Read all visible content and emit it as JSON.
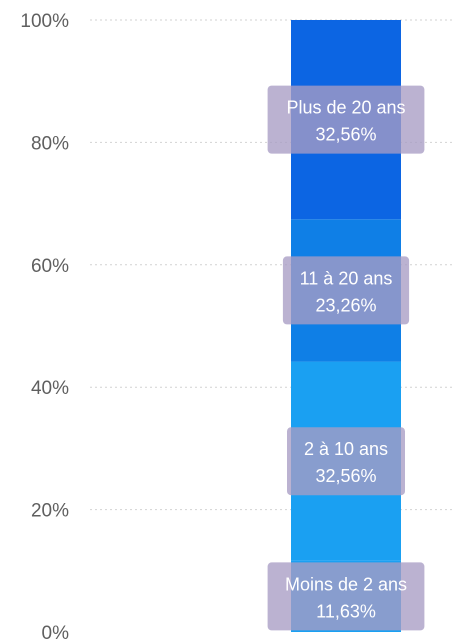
{
  "chart_data": {
    "type": "bar",
    "stacked": true,
    "percent_stacked": true,
    "categories": [
      ""
    ],
    "series": [
      {
        "name": "Moins de 2 ans",
        "values": [
          11.63
        ],
        "label": "11,63%",
        "color": "#1aa0f2"
      },
      {
        "name": "2 à 10 ans",
        "values": [
          32.56
        ],
        "label": "32,56%",
        "color": "#1aa0f2"
      },
      {
        "name": "11 à 20 ans",
        "values": [
          23.26
        ],
        "label": "23,26%",
        "color": "#0f7fe6"
      },
      {
        "name": "Plus de 20 ans",
        "values": [
          32.56
        ],
        "label": "32,56%",
        "color": "#0c65e3"
      }
    ],
    "ylim": [
      0,
      100
    ],
    "yticks": [
      {
        "value": 0,
        "label": "0%"
      },
      {
        "value": 20,
        "label": "20%"
      },
      {
        "value": 40,
        "label": "40%"
      },
      {
        "value": 60,
        "label": "60%"
      },
      {
        "value": 80,
        "label": "80%"
      },
      {
        "value": 100,
        "label": "100%"
      }
    ],
    "grid": true,
    "legend": "none",
    "data_label_box_color": "#a89cc4",
    "title": "",
    "xlabel": "",
    "ylabel": ""
  }
}
